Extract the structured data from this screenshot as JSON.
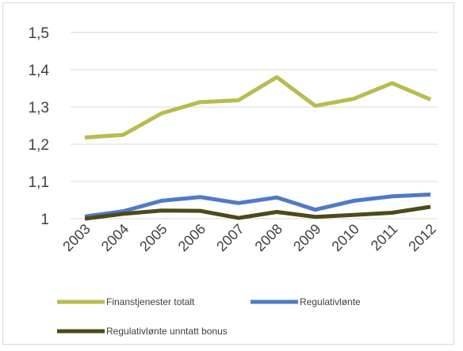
{
  "chart_data": {
    "type": "line",
    "title": "",
    "xlabel": "",
    "ylabel": "",
    "categories": [
      "2003",
      "2004",
      "2005",
      "2006",
      "2007",
      "2008",
      "2009",
      "2010",
      "2011",
      "2012"
    ],
    "ylim": [
      1.0,
      1.5
    ],
    "yticks": [
      "1",
      "1,1",
      "1,2",
      "1,3",
      "1,4",
      "1,5"
    ],
    "ytick_values": [
      1.0,
      1.1,
      1.2,
      1.3,
      1.4,
      1.5
    ],
    "grid": true,
    "legend_position": "bottom",
    "series": [
      {
        "name": "Finanstjenester totalt",
        "color": "#b9bb4e",
        "values": [
          1.218,
          1.225,
          1.283,
          1.313,
          1.318,
          1.38,
          1.303,
          1.322,
          1.364,
          1.32
        ]
      },
      {
        "name": "Regulativlønte",
        "color": "#4f7ac7",
        "values": [
          1.006,
          1.02,
          1.048,
          1.058,
          1.042,
          1.057,
          1.024,
          1.048,
          1.06,
          1.065
        ]
      },
      {
        "name": "Regulativlønte unntatt bonus",
        "color": "#4c4a1a",
        "values": [
          1.0,
          1.013,
          1.022,
          1.021,
          1.002,
          1.018,
          1.005,
          1.01,
          1.016,
          1.032
        ]
      }
    ]
  }
}
